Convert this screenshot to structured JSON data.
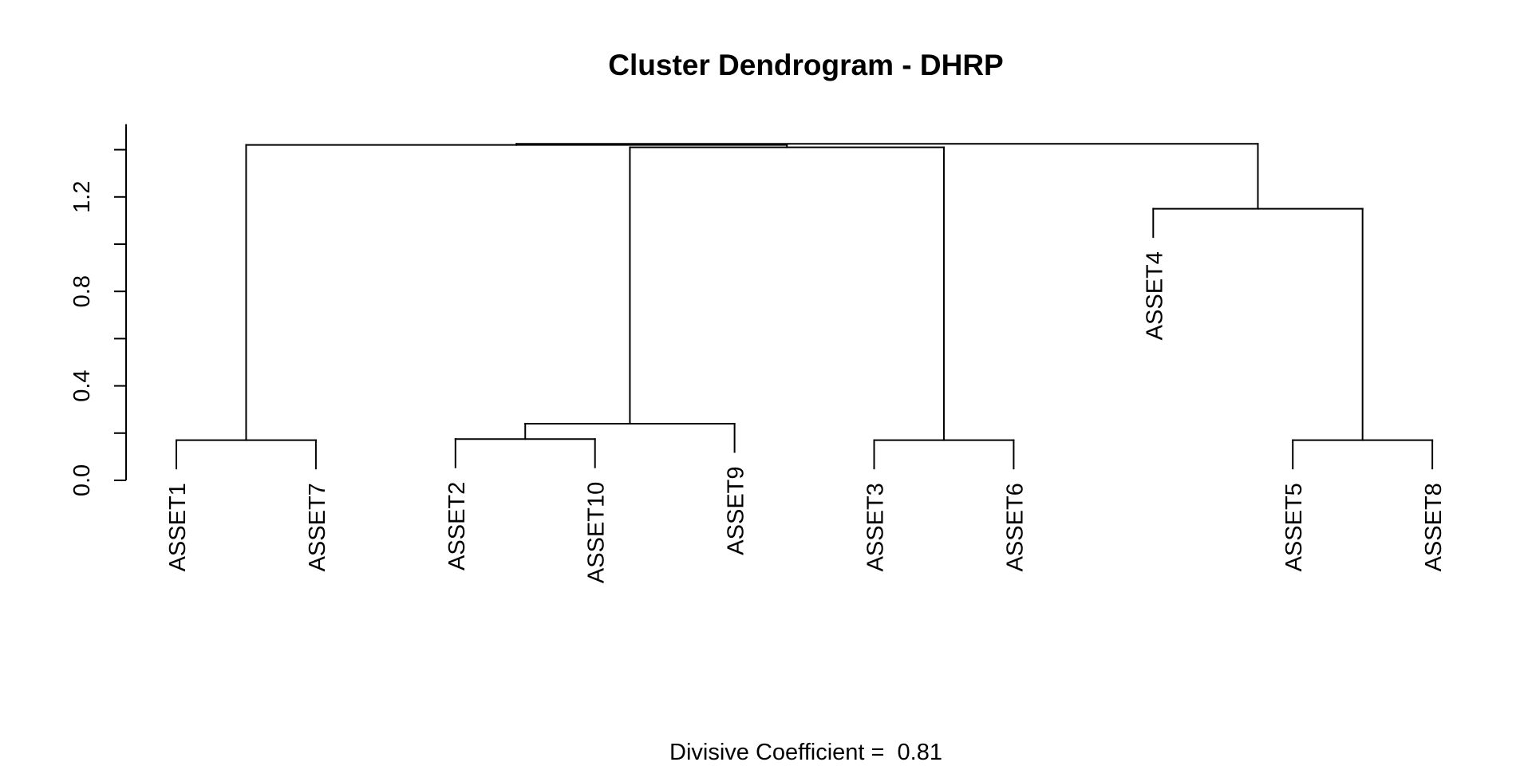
{
  "chart_data": {
    "type": "dendrogram",
    "title": "Cluster Dendrogram - DHRP",
    "subtitle_label": "Divisive Coefficient = ",
    "subtitle_value": "0.81",
    "ylabel": "",
    "xlabel": "",
    "ylim": [
      0,
      1.5
    ],
    "yticks": [
      0.0,
      0.2,
      0.4,
      0.6,
      0.8,
      1.0,
      1.2,
      1.4
    ],
    "ytick_labels": [
      "0.0",
      "",
      "0.4",
      "",
      "0.8",
      "",
      "1.2",
      ""
    ],
    "leaf_order": [
      "ASSET1",
      "ASSET7",
      "ASSET2",
      "ASSET10",
      "ASSET9",
      "ASSET3",
      "ASSET6",
      "ASSET4",
      "ASSET5",
      "ASSET8"
    ],
    "merges": [
      {
        "id": "n1",
        "left": "ASSET1",
        "right": "ASSET7",
        "height": 0.17
      },
      {
        "id": "n2",
        "left": "ASSET2",
        "right": "ASSET10",
        "height": 0.175
      },
      {
        "id": "n3",
        "left": "n2",
        "right": "ASSET9",
        "height": 0.24
      },
      {
        "id": "n4",
        "left": "ASSET3",
        "right": "ASSET6",
        "height": 0.17
      },
      {
        "id": "n5",
        "left": "n3",
        "right": "n4",
        "height": 1.41
      },
      {
        "id": "n6",
        "left": "ASSET5",
        "right": "ASSET8",
        "height": 0.17
      },
      {
        "id": "n7",
        "left": "ASSET4",
        "right": "n6",
        "height": 1.15
      },
      {
        "id": "n8",
        "left": "n1",
        "right": "n5",
        "height": 1.42
      },
      {
        "id": "n9",
        "left": "n8",
        "right": "n7",
        "height": 1.425
      }
    ],
    "leaf_hang": 0.12,
    "grid": false,
    "legend": "none"
  }
}
